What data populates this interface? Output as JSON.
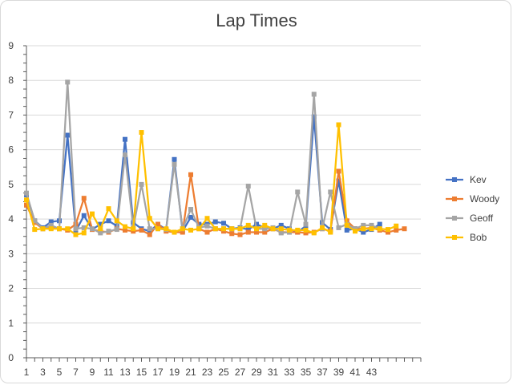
{
  "chart_data": {
    "type": "line",
    "title": "Lap Times",
    "xlabel": "",
    "ylabel": "",
    "ylim": [
      0,
      9
    ],
    "y_ticks": [
      0,
      1,
      2,
      3,
      4,
      5,
      6,
      7,
      8,
      9
    ],
    "x_tick_labels": [
      1,
      3,
      5,
      7,
      9,
      11,
      13,
      15,
      17,
      19,
      21,
      23,
      25,
      27,
      29,
      31,
      33,
      35,
      37,
      39,
      41,
      43
    ],
    "x_count": 49,
    "grid": true,
    "legend_position": "right",
    "series": [
      {
        "name": "Kev",
        "color": "#4472C4",
        "values": [
          4.7,
          3.95,
          3.75,
          3.92,
          3.95,
          6.42,
          3.65,
          4.1,
          3.7,
          3.85,
          3.95,
          3.8,
          6.3,
          3.9,
          3.72,
          3.65,
          3.85,
          3.7,
          5.72,
          3.65,
          4.05,
          3.85,
          3.85,
          3.92,
          3.88,
          3.72,
          3.75,
          3.7,
          3.85,
          3.75,
          3.72,
          3.82,
          3.72,
          3.62,
          3.8,
          6.95,
          3.9,
          3.7,
          5.1,
          3.68,
          3.72,
          3.62,
          3.7,
          3.85
        ]
      },
      {
        "name": "Woody",
        "color": "#ED7D31",
        "values": [
          4.4,
          3.9,
          3.72,
          3.75,
          3.72,
          3.68,
          3.85,
          4.6,
          3.7,
          3.65,
          3.62,
          3.72,
          3.68,
          3.65,
          3.68,
          3.55,
          3.85,
          3.65,
          3.62,
          3.62,
          5.28,
          3.72,
          3.62,
          3.72,
          3.65,
          3.58,
          3.55,
          3.62,
          3.62,
          3.62,
          3.72,
          3.62,
          3.62,
          3.62,
          3.6,
          3.62,
          3.72,
          3.65,
          5.38,
          3.95,
          3.72,
          3.72,
          3.75,
          3.68,
          3.62,
          3.68,
          3.72
        ]
      },
      {
        "name": "Geoff",
        "color": "#A5A5A5",
        "values": [
          4.75,
          3.95,
          3.72,
          3.82,
          3.72,
          7.95,
          3.72,
          3.75,
          3.72,
          3.6,
          3.65,
          3.7,
          5.85,
          3.75,
          5.0,
          3.72,
          3.72,
          3.7,
          5.58,
          3.72,
          4.28,
          3.75,
          3.8,
          3.72,
          3.72,
          3.72,
          3.72,
          4.95,
          3.72,
          3.72,
          3.75,
          3.6,
          3.62,
          4.78,
          3.85,
          7.6,
          3.72,
          4.78,
          3.75,
          3.85,
          3.72,
          3.82,
          3.82,
          3.72
        ]
      },
      {
        "name": "Bob",
        "color": "#FFC000",
        "values": [
          4.55,
          3.7,
          3.72,
          3.72,
          3.72,
          3.72,
          3.55,
          3.6,
          4.15,
          3.72,
          4.3,
          3.95,
          3.78,
          3.72,
          6.5,
          4.02,
          3.72,
          3.72,
          3.62,
          3.72,
          3.68,
          3.72,
          4.02,
          3.72,
          3.72,
          3.72,
          3.72,
          3.82,
          3.72,
          3.82,
          3.72,
          3.72,
          3.68,
          3.68,
          3.68,
          3.6,
          3.75,
          3.62,
          6.72,
          3.82,
          3.65,
          3.72,
          3.72,
          3.72,
          3.7,
          3.8
        ]
      }
    ]
  }
}
